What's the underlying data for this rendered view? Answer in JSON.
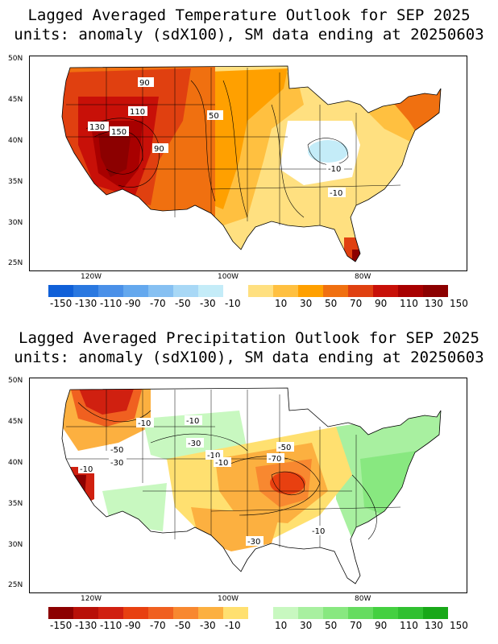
{
  "temperature_panel": {
    "title_line1": "Lagged Averaged Temperature Outlook for SEP 2025",
    "title_line2": "units: anomaly (sdX100), SM data ending at 20250603",
    "lat_labels": [
      "50N",
      "45N",
      "40N",
      "35N",
      "30N",
      "25N"
    ],
    "lon_labels": [
      "120W",
      "100W",
      "80W"
    ],
    "contour_labels": [
      "90",
      "110",
      "130",
      "150",
      "90",
      "50",
      "-10",
      "-10"
    ],
    "colorbar": {
      "colors": [
        "#1060d8",
        "#2a78e0",
        "#4a90e8",
        "#64a8ee",
        "#86c0f2",
        "#a8d8f6",
        "#c4ecf8",
        "#ffffff",
        "#ffe080",
        "#ffc040",
        "#ffa000",
        "#f07010",
        "#e04010",
        "#c81008",
        "#a80000",
        "#8c0000"
      ],
      "labels": [
        "-150",
        "-130",
        "-110",
        "-90",
        "-70",
        "-50",
        "-30",
        "-10",
        "10",
        "30",
        "50",
        "70",
        "90",
        "110",
        "130",
        "150"
      ]
    }
  },
  "precipitation_panel": {
    "title_line1": "Lagged Averaged Precipitation Outlook for SEP 2025",
    "title_line2": "units: anomaly (sdX100), SM data ending at 20250603",
    "lat_labels": [
      "50N",
      "45N",
      "40N",
      "35N",
      "30N",
      "25N"
    ],
    "lon_labels": [
      "120W",
      "100W",
      "80W"
    ],
    "contour_labels": [
      "-10",
      "-10",
      "-30",
      "-50",
      "-30",
      "-10",
      "-10",
      "-10",
      "-50",
      "-70",
      "-10",
      "-30"
    ],
    "colorbar": {
      "colors": [
        "#8c0000",
        "#b81008",
        "#d02010",
        "#e84010",
        "#f06020",
        "#f88830",
        "#fcb040",
        "#ffe070",
        "#ffffff",
        "#c8f8c0",
        "#a8f0a0",
        "#88e880",
        "#66dc60",
        "#44d040",
        "#30c030",
        "#18a818"
      ],
      "labels": [
        "-150",
        "-130",
        "-110",
        "-90",
        "-70",
        "-50",
        "-30",
        "-10",
        "10",
        "30",
        "50",
        "70",
        "90",
        "110",
        "130",
        "150"
      ]
    }
  }
}
